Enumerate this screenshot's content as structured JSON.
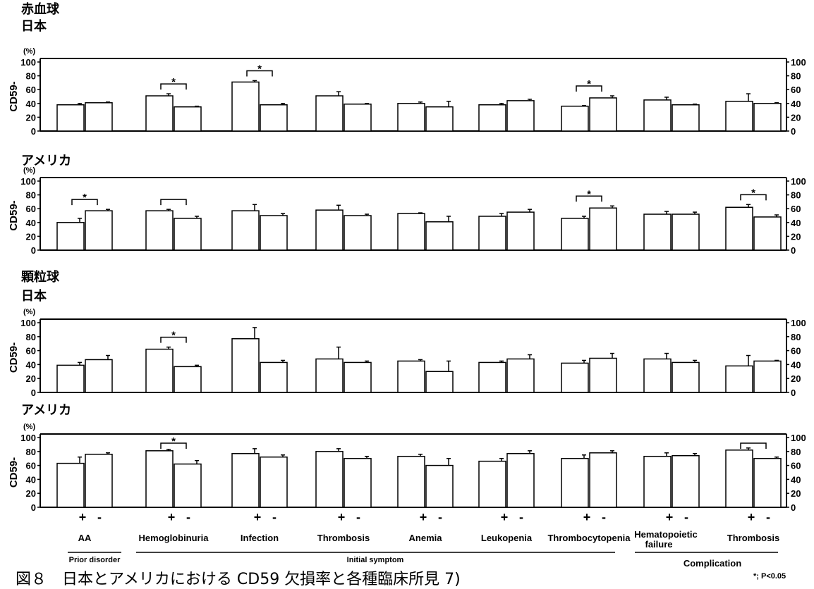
{
  "figure": {
    "caption": "図８　日本とアメリカにおける CD59 欠損率と各種臨床所見 7)",
    "significance_note": "*; P<0.05",
    "groups": {
      "prior": "Prior disorder",
      "initial": "Initial symptom",
      "complication": "Complication"
    },
    "bar_fill": "#ffffff",
    "bar_stroke": "#000000"
  },
  "chart_data": [
    {
      "type": "bar",
      "cell_type": "赤血球",
      "region": "日本",
      "ylabel": "CD59-",
      "yunit": "(%)",
      "ylim": [
        0,
        100
      ],
      "yticks": [
        0,
        20,
        40,
        60,
        80,
        100
      ],
      "categories": [
        "AA",
        "Hemoglobinuria",
        "Infection",
        "Thrombosis",
        "Anemia",
        "Leukopenia",
        "Thrombocytopenia",
        "Hematopoietic failure",
        "Thrombosis"
      ],
      "series": [
        {
          "name": "+",
          "values": [
            38,
            51,
            71,
            51,
            40,
            38,
            36,
            45,
            43
          ],
          "errors": [
            2,
            3,
            2,
            6,
            2,
            2,
            1,
            4,
            11
          ]
        },
        {
          "name": "-",
          "values": [
            41,
            35,
            38,
            39,
            35,
            44,
            48,
            38,
            40
          ],
          "errors": [
            1,
            1,
            2,
            1,
            8,
            2,
            3,
            1,
            1
          ]
        }
      ],
      "brackets": [
        {
          "category": 1,
          "star": true
        },
        {
          "category": 2,
          "star": true
        },
        {
          "category": 6,
          "star": true
        }
      ]
    },
    {
      "type": "bar",
      "cell_type": "",
      "region": "アメリカ",
      "ylabel": "CD59-",
      "yunit": "(%)",
      "ylim": [
        0,
        100
      ],
      "yticks": [
        0,
        20,
        40,
        60,
        80,
        100
      ],
      "categories": [
        "AA",
        "Hemoglobinuria",
        "Infection",
        "Thrombosis",
        "Anemia",
        "Leukopenia",
        "Thrombocytopenia",
        "Hematopoietic failure",
        "Thrombosis"
      ],
      "series": [
        {
          "name": "+",
          "values": [
            40,
            57,
            57,
            58,
            53,
            49,
            46,
            52,
            62
          ],
          "errors": [
            6,
            2,
            9,
            7,
            1,
            4,
            3,
            4,
            4
          ]
        },
        {
          "name": "-",
          "values": [
            57,
            46,
            50,
            50,
            41,
            55,
            61,
            52,
            48
          ],
          "errors": [
            2,
            3,
            3,
            2,
            8,
            4,
            3,
            3,
            3
          ]
        }
      ],
      "brackets": [
        {
          "category": 0,
          "star": true
        },
        {
          "category": 1,
          "star": false
        },
        {
          "category": 6,
          "star": true
        },
        {
          "category": 8,
          "star": true
        }
      ]
    },
    {
      "type": "bar",
      "cell_type": "顆粒球",
      "region": "日本",
      "ylabel": "CD59-",
      "yunit": "(%)",
      "ylim": [
        0,
        100
      ],
      "yticks": [
        0,
        20,
        40,
        60,
        80,
        100
      ],
      "categories": [
        "AA",
        "Hemoglobinuria",
        "Infection",
        "Thrombosis",
        "Anemia",
        "Leukopenia",
        "Thrombocytopenia",
        "Hematopoietic failure",
        "Thrombosis"
      ],
      "series": [
        {
          "name": "+",
          "values": [
            39,
            62,
            77,
            48,
            45,
            43,
            42,
            48,
            38
          ],
          "errors": [
            4,
            3,
            16,
            17,
            2,
            2,
            4,
            8,
            15
          ]
        },
        {
          "name": "-",
          "values": [
            47,
            37,
            43,
            43,
            30,
            48,
            49,
            43,
            45
          ],
          "errors": [
            6,
            2,
            3,
            2,
            15,
            6,
            7,
            3,
            1
          ]
        }
      ],
      "brackets": [
        {
          "category": 1,
          "star": true
        }
      ]
    },
    {
      "type": "bar",
      "cell_type": "",
      "region": "アメリカ",
      "ylabel": "CD59-",
      "yunit": "(%)",
      "ylim": [
        0,
        100
      ],
      "yticks": [
        0,
        20,
        40,
        60,
        80,
        100
      ],
      "categories": [
        "AA",
        "Hemoglobinuria",
        "Infection",
        "Thrombosis",
        "Anemia",
        "Leukopenia",
        "Thrombocytopenia",
        "Hematopoietic failure",
        "Thrombosis"
      ],
      "series": [
        {
          "name": "+",
          "values": [
            63,
            81,
            77,
            80,
            73,
            66,
            70,
            73,
            82
          ],
          "errors": [
            9,
            2,
            7,
            4,
            3,
            4,
            5,
            5,
            3
          ]
        },
        {
          "name": "-",
          "values": [
            76,
            62,
            72,
            70,
            60,
            77,
            78,
            74,
            70
          ],
          "errors": [
            2,
            5,
            3,
            3,
            10,
            4,
            3,
            3,
            2
          ]
        }
      ],
      "brackets": [
        {
          "category": 1,
          "star": true
        },
        {
          "category": 8,
          "star": false
        }
      ]
    }
  ]
}
